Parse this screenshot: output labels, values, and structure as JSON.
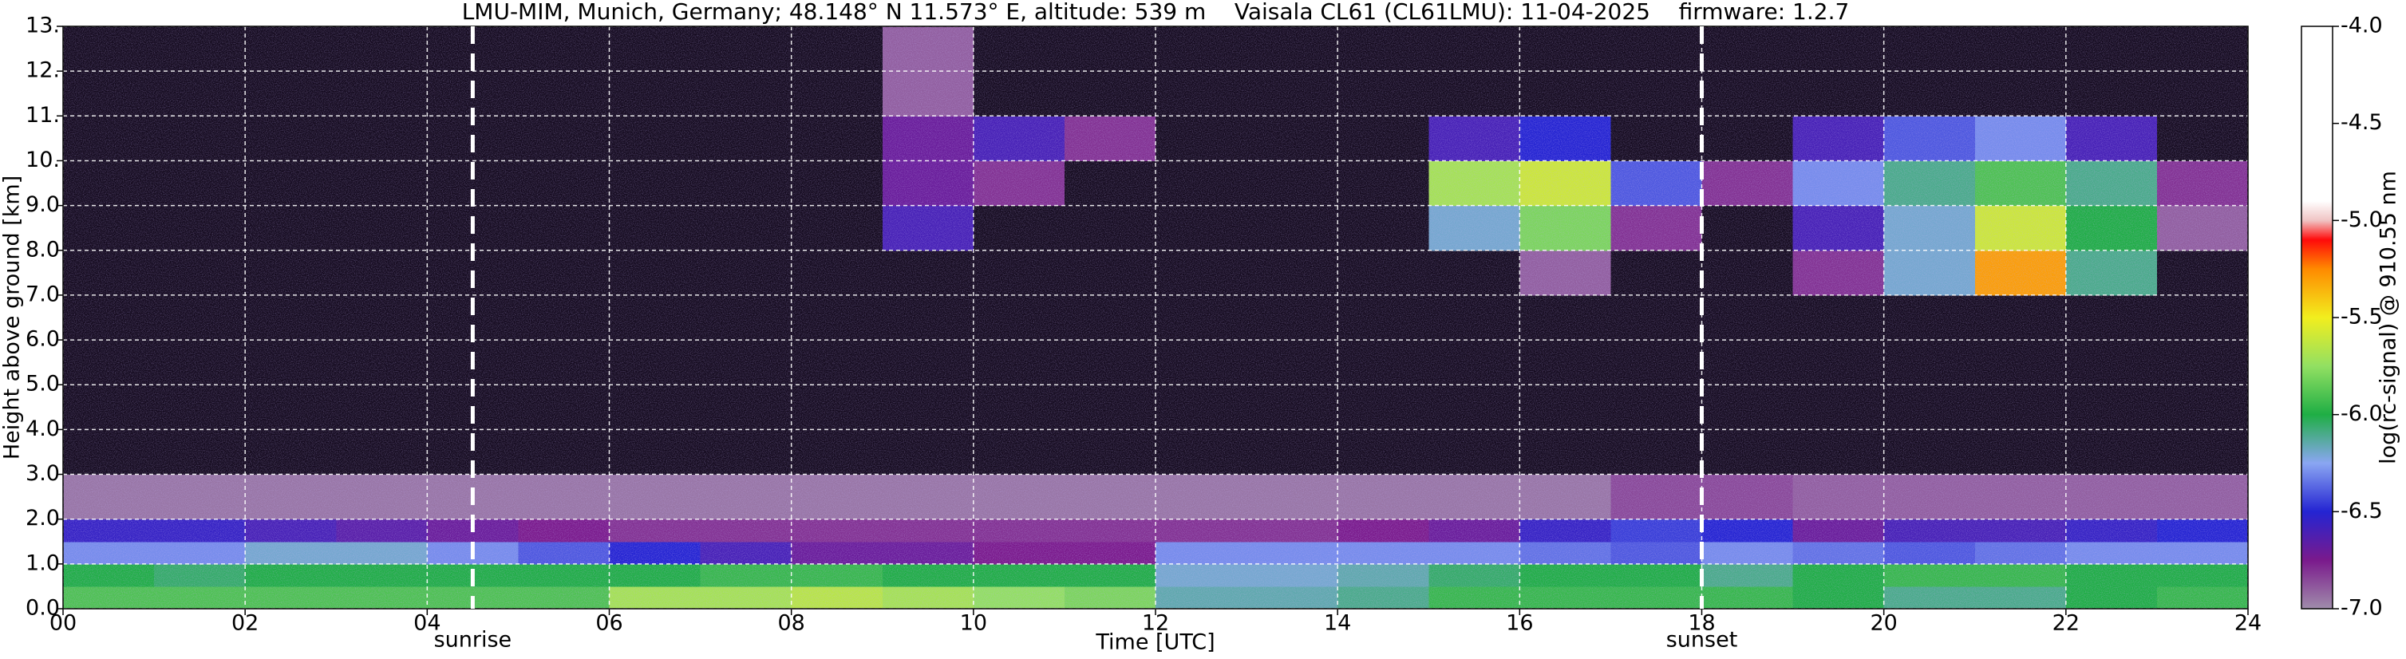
{
  "chart_data": {
    "type": "heatmap",
    "title": "LMU-MIM, Munich, Germany; 48.148° N 11.573° E, altitude: 539 m    Vaisala CL61 (CL61LMU): 11-04-2025    firmware: 1.2.7",
    "x_label": "Time [UTC]",
    "y_label": "Height above ground [km]",
    "colorbar_label": "log(rc-signal) @ 910.55 nm",
    "xlim": [
      0,
      24
    ],
    "xticks": [
      {
        "value": 0,
        "label": "00"
      },
      {
        "value": 2,
        "label": "02"
      },
      {
        "value": 4,
        "label": "04"
      },
      {
        "value": 6,
        "label": "06"
      },
      {
        "value": 8,
        "label": "08"
      },
      10,
      12,
      14,
      16,
      18,
      20,
      22,
      24
    ],
    "ylim": [
      0,
      13
    ],
    "yticks": [
      {
        "value": 0,
        "label": "0.0"
      },
      {
        "value": 1,
        "label": "1.0"
      },
      {
        "value": 2,
        "label": "2.0"
      },
      {
        "value": 3,
        "label": "3.0"
      },
      {
        "value": 4,
        "label": "4.0"
      },
      {
        "value": 5,
        "label": "5.0"
      },
      {
        "value": 6,
        "label": "6.0"
      },
      {
        "value": 7,
        "label": "7.0"
      },
      {
        "value": 8,
        "label": "8.0"
      },
      {
        "value": 9,
        "label": "9.0"
      },
      {
        "value": 10,
        "label": "10."
      },
      {
        "value": 11,
        "label": "11."
      },
      {
        "value": 12,
        "label": "12."
      },
      {
        "value": 13,
        "label": "13."
      }
    ],
    "clim": [
      -7,
      -4
    ],
    "cticks": [
      {
        "value": -7,
        "label": "-7.0"
      },
      -6.5,
      {
        "value": -6,
        "label": "-6.0"
      },
      -5.5,
      {
        "value": -5,
        "label": "-5.0"
      },
      -4.5,
      {
        "value": -4,
        "label": "-4.0"
      }
    ],
    "grid": true,
    "grid_color": "#ffffff",
    "under_color": "#140a1e",
    "colorscale": [
      [
        -7,
        "#a08cab"
      ],
      [
        -6.75,
        "#7a1a8c"
      ],
      [
        -6.5,
        "#2424d2"
      ],
      [
        -6.25,
        "#8aa6f2"
      ],
      [
        -6,
        "#1fae45"
      ],
      [
        -5.75,
        "#92e062"
      ],
      [
        -5.5,
        "#f2ee1e"
      ],
      [
        -5.25,
        "#ff8a00"
      ],
      [
        -5.1,
        "#ff0a0a"
      ],
      [
        -5,
        "#f0c4c4"
      ],
      [
        -4.9,
        "#ffffff"
      ],
      [
        -4,
        "#ffffff"
      ]
    ],
    "annotations": [
      {
        "x": 4.5,
        "label": "sunrise"
      },
      {
        "x": 18,
        "label": "sunset"
      }
    ],
    "annotation_color": "#ffffff",
    "x_edges": [
      0,
      1,
      2,
      3,
      4,
      5,
      6,
      7,
      8,
      9,
      10,
      11,
      12,
      13,
      14,
      15,
      16,
      17,
      18,
      19,
      20,
      21,
      22,
      23,
      24
    ],
    "y_edges": [
      0,
      0.5,
      1,
      1.5,
      2,
      3,
      5,
      7,
      8,
      9,
      10,
      11,
      13
    ],
    "z": [
      [
        -5.9,
        -5.9,
        -5.9,
        -5.9,
        -5.9,
        -5.9,
        -5.7,
        -5.7,
        -5.65,
        -5.7,
        -5.75,
        -5.8,
        -6.15,
        -6.15,
        -6.1,
        -5.95,
        -5.95,
        -5.95,
        -5.95,
        -6.0,
        -6.1,
        -6.1,
        -6.0,
        -5.95
      ],
      [
        -6.0,
        -6.05,
        -6.0,
        -6.0,
        -6.0,
        -6.0,
        -6.0,
        -5.95,
        -5.95,
        -6.0,
        -6.0,
        -6.0,
        -6.2,
        -6.2,
        -6.15,
        -6.05,
        -6.0,
        -6.0,
        -6.1,
        -6.0,
        -5.95,
        -5.95,
        -6.0,
        -6.0
      ],
      [
        -6.3,
        -6.3,
        -6.2,
        -6.2,
        -6.3,
        -6.4,
        -6.5,
        -6.6,
        -6.7,
        -6.7,
        -6.75,
        -6.75,
        -6.3,
        -6.3,
        -6.3,
        -6.3,
        -6.35,
        -6.4,
        -6.3,
        -6.35,
        -6.4,
        -6.35,
        -6.3,
        -6.3
      ],
      [
        -6.55,
        -6.55,
        -6.6,
        -6.65,
        -6.7,
        -6.75,
        -6.8,
        -6.8,
        -6.8,
        -6.8,
        -6.8,
        -6.8,
        -6.8,
        -6.8,
        -6.75,
        -6.7,
        -6.55,
        -6.45,
        -6.5,
        -6.7,
        -6.6,
        -6.6,
        -6.55,
        -6.5
      ],
      [
        -6.95,
        -6.95,
        -6.95,
        -6.95,
        -6.95,
        -6.95,
        -6.95,
        -6.95,
        -6.95,
        -6.95,
        -6.95,
        -6.95,
        -6.95,
        -6.95,
        -6.95,
        -6.95,
        -6.95,
        -6.85,
        -6.85,
        -6.9,
        -6.9,
        -6.9,
        -6.9,
        -6.9
      ],
      [
        -7.1,
        -7.1,
        -7.1,
        -7.1,
        -7.1,
        -7.1,
        -7.1,
        -7.1,
        -7.1,
        -7.1,
        -7.1,
        -7.1,
        -7.1,
        -7.1,
        -7.1,
        -7.1,
        -7.1,
        -7.1,
        -7.1,
        -7.1,
        -7.1,
        -7.1,
        -7.1,
        -7.1
      ],
      [
        -7.1,
        -7.1,
        -7.1,
        -7.1,
        -7.1,
        -7.1,
        -7.1,
        -7.1,
        -7.1,
        -7.1,
        -7.1,
        -7.1,
        -7.1,
        -7.1,
        -7.1,
        -7.1,
        -7.1,
        -7.1,
        -7.1,
        -7.1,
        -7.1,
        -7.1,
        -7.1,
        -7.1
      ],
      [
        -7.1,
        -7.1,
        -7.1,
        -7.1,
        -7.1,
        -7.1,
        -7.1,
        -7.1,
        -7.1,
        -7.1,
        -7.1,
        -7.1,
        -7.1,
        -7.1,
        -7.1,
        -7.1,
        -6.9,
        -7.1,
        -7.1,
        -6.8,
        -6.2,
        -5.3,
        -6.1,
        -7.1
      ],
      [
        -7.1,
        -7.1,
        -7.1,
        -7.1,
        -7.1,
        -7.1,
        -7.1,
        -7.1,
        -7.1,
        -6.6,
        -7.1,
        -7.1,
        -7.1,
        -7.1,
        -7.1,
        -6.2,
        -5.8,
        -6.8,
        -7.1,
        -6.6,
        -6.2,
        -5.6,
        -6.0,
        -6.9
      ],
      [
        -7.1,
        -7.1,
        -7.1,
        -7.1,
        -7.1,
        -7.1,
        -7.1,
        -7.1,
        -7.1,
        -6.7,
        -6.8,
        -7.1,
        -7.1,
        -7.1,
        -7.1,
        -5.7,
        -5.6,
        -6.4,
        -6.8,
        -6.3,
        -6.1,
        -5.9,
        -6.1,
        -6.8
      ],
      [
        -7.1,
        -7.1,
        -7.1,
        -7.1,
        -7.1,
        -7.1,
        -7.1,
        -7.1,
        -7.1,
        -6.7,
        -6.6,
        -6.8,
        -7.1,
        -7.1,
        -7.1,
        -6.6,
        -6.5,
        -7.1,
        -7.1,
        -6.6,
        -6.4,
        -6.3,
        -6.6,
        -7.1
      ],
      [
        -7.1,
        -7.1,
        -7.1,
        -7.1,
        -7.1,
        -7.1,
        -7.1,
        -7.1,
        -7.1,
        -6.9,
        -7.1,
        -7.1,
        -7.1,
        -7.1,
        -7.1,
        -7.1,
        -7.1,
        -7.1,
        -7.1,
        -7.1,
        -7.1,
        -7.1,
        -7.1,
        -7.1
      ]
    ]
  }
}
